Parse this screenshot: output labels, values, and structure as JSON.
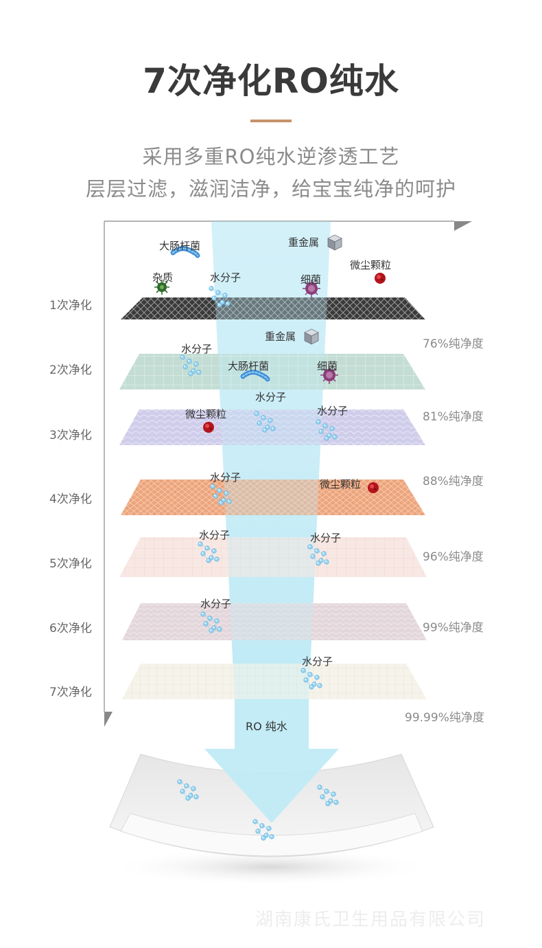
{
  "title": "7次净化RO纯水",
  "subtitle": {
    "line1": "采用多重RO纯水逆渗透工艺",
    "line2": "层层过滤，滋润洁净，给宝宝纯净的呵护"
  },
  "stages": [
    "1次净化",
    "2次净化",
    "3次净化",
    "4次净化",
    "5次净化",
    "6次净化",
    "7次净化"
  ],
  "purity": [
    "76%纯净度",
    "81%纯净度",
    "88%纯净度",
    "96%纯净度",
    "99%纯净度",
    "99.99%纯净度"
  ],
  "labels": {
    "ecoli": "大肠杆菌",
    "heavy_metal": "重金属",
    "impurity": "杂质",
    "water_molecule": "水分子",
    "bacteria": "细菌",
    "dust": "微尘颗粒"
  },
  "ro_water": "RO 纯水",
  "company": "湖南康氏卫生用品有限公司",
  "colors": {
    "accent": "#c8926a",
    "beam": "#bfeaf5",
    "layer1": "#3a3a3a",
    "layer2": "#bcd8cf",
    "layer3": "#cccbe8",
    "layer4": "#eba27a",
    "layer5": "#f6e4e0",
    "layer6": "#e2d6da",
    "layer7": "#f3f1e8"
  },
  "icons": [
    "ecoli-icon",
    "heavy-metal-cube-icon",
    "impurity-virus-icon",
    "water-molecule-icon",
    "bacteria-icon",
    "dust-particle-icon",
    "down-arrow-icon"
  ]
}
